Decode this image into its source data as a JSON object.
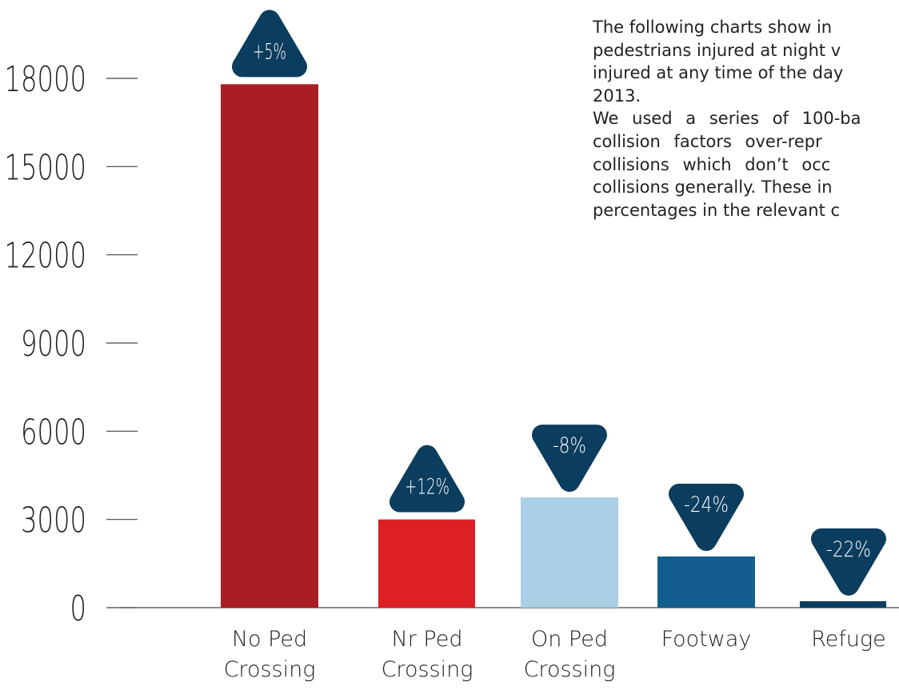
{
  "chart_data": {
    "type": "bar",
    "categories": [
      "No Ped Crossing",
      "Nr Ped Crossing",
      "On Ped Crossing",
      "Footway",
      "Refuge"
    ],
    "values": [
      17800,
      3000,
      3750,
      1740,
      220
    ],
    "colors": [
      "#a81e23",
      "#dd1f26",
      "#abcfe5",
      "#135e8f",
      "#0b3d5e"
    ],
    "changes": [
      5,
      12,
      -8,
      -24,
      -22
    ],
    "change_labels": [
      "+5%",
      "+12%",
      "-8%",
      "-24%",
      "-22%"
    ],
    "badge_color": "#0b3d5e",
    "ylim": [
      0,
      18000
    ],
    "yticks": [
      0,
      3000,
      6000,
      9000,
      12000,
      15000,
      18000
    ]
  },
  "text": {
    "lines": [
      "The following charts show in",
      "pedestrians injured at night v",
      "injured at any time of the day",
      "2013.",
      "We used a series of 100-ba",
      "collision factors over-repr",
      "collisions which don’t occ",
      "collisions generally. These in",
      "percentages in the relevant c"
    ]
  }
}
